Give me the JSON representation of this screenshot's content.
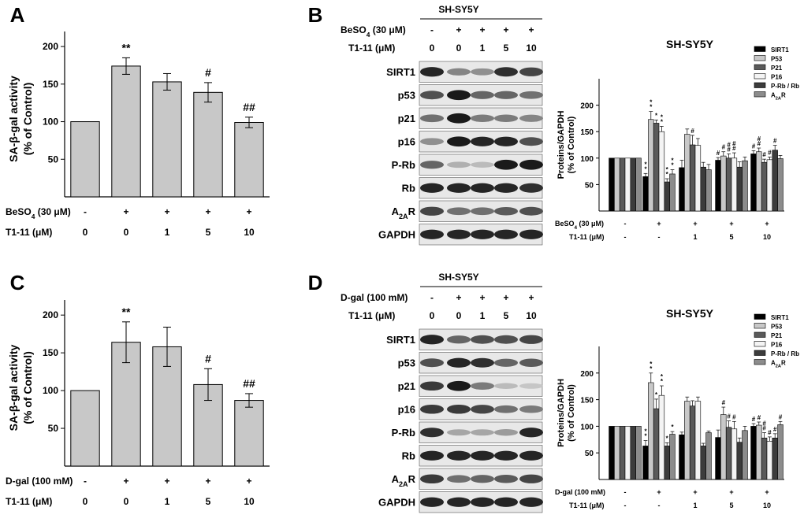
{
  "panels": {
    "A": {
      "letter": "A"
    },
    "B": {
      "letter": "B"
    },
    "C": {
      "letter": "C"
    },
    "D": {
      "letter": "D"
    }
  },
  "chart_data": [
    {
      "id": "A",
      "type": "bar",
      "ylabel_1": "SA-β-gal activity",
      "ylabel_2": "(% of Control)",
      "yticks": [
        50,
        100,
        150,
        200
      ],
      "ylim": [
        0,
        220
      ],
      "categories": [
        "0",
        "0",
        "1",
        "5",
        "10"
      ],
      "treatment_label": "BeSO4 (30 μM)",
      "treatment_values": [
        "-",
        "+",
        "+",
        "+",
        "+"
      ],
      "dose_label": "T1-11 (μM)",
      "values": [
        100,
        174,
        153,
        139,
        99
      ],
      "errors": [
        0,
        11,
        11,
        13,
        7
      ],
      "annotations": [
        "",
        "**",
        "",
        "#",
        "##"
      ]
    },
    {
      "id": "C",
      "type": "bar",
      "ylabel_1": "SA-β-gal activity",
      "ylabel_2": "(% of Control)",
      "yticks": [
        50,
        100,
        150,
        200
      ],
      "ylim": [
        0,
        220
      ],
      "categories": [
        "0",
        "0",
        "1",
        "5",
        "10"
      ],
      "treatment_label": "D-gal (100 mM)",
      "treatment_values": [
        "-",
        "+",
        "+",
        "+",
        "+"
      ],
      "dose_label": "T1-11 (μM)",
      "values": [
        100,
        164,
        158,
        108,
        87
      ],
      "errors": [
        0,
        27,
        26,
        21,
        9
      ],
      "annotations": [
        "",
        "**",
        "",
        "#",
        "##"
      ]
    },
    {
      "id": "B",
      "type": "bar",
      "title": "SH-SY5Y",
      "ylabel_1": "Proteins/GAPDH",
      "ylabel_2": "(% of Control)",
      "yticks": [
        50,
        100,
        150,
        200
      ],
      "ylim": [
        0,
        250
      ],
      "legend": [
        "SIRT1",
        "P53",
        "P21",
        "P16",
        "P-Rb / Rb",
        "A2AR"
      ],
      "series_colors": [
        "#000000",
        "#c8c8c8",
        "#5a5a5a",
        "#f4f4f4",
        "#3c3c3c",
        "#8c8c8c"
      ],
      "treatment_label": "BeSO4 (30 μM)",
      "treatment_values": [
        "-",
        "+",
        "+",
        "+",
        "+"
      ],
      "dose_label": "T1-11 (μM)",
      "dose_values": [
        "-",
        "-",
        "1",
        "5",
        "10"
      ],
      "groups": [
        {
          "values": [
            100,
            100,
            100,
            100,
            100,
            100
          ],
          "errors": [
            0,
            0,
            0,
            0,
            0,
            0
          ],
          "marks": [
            "",
            "",
            "",
            "",
            "",
            ""
          ]
        },
        {
          "values": [
            65,
            173,
            166,
            150,
            55,
            70
          ],
          "errors": [
            6,
            15,
            6,
            10,
            6,
            8
          ],
          "marks": [
            "**",
            "**",
            "*",
            "**",
            "**",
            "**"
          ]
        },
        {
          "values": [
            82,
            145,
            125,
            124,
            83,
            78
          ],
          "errors": [
            14,
            10,
            18,
            13,
            9,
            10
          ],
          "marks": [
            "",
            "",
            "#",
            "",
            "",
            ""
          ]
        },
        {
          "values": [
            96,
            104,
            100,
            100,
            83,
            95
          ],
          "errors": [
            5,
            8,
            8,
            10,
            10,
            7
          ],
          "marks": [
            "#",
            "#",
            "##",
            "##",
            "",
            ""
          ]
        },
        {
          "values": [
            108,
            112,
            92,
            97,
            115,
            99
          ],
          "errors": [
            6,
            7,
            6,
            5,
            9,
            6
          ],
          "marks": [
            "#",
            "##",
            "#",
            "#",
            "#",
            ""
          ]
        }
      ],
      "blot": {
        "cell_line": "SH-SY5Y",
        "treatment_label": "BeSO",
        "treatment_sub": "4",
        "treatment_unit": " (30 μM)",
        "treatment_values": [
          "-",
          "+",
          "+",
          "+",
          "+"
        ],
        "dose_label": "T1-11 (μM)",
        "dose_values": [
          "0",
          "0",
          "1",
          "5",
          "10"
        ],
        "bands": [
          "SIRT1",
          "p53",
          "p21",
          "p16",
          "P-Rb",
          "Rb",
          "A2AR",
          "GAPDH"
        ],
        "intensity": [
          [
            0.9,
            0.45,
            0.4,
            0.85,
            0.75
          ],
          [
            0.7,
            0.95,
            0.6,
            0.6,
            0.55
          ],
          [
            0.55,
            0.95,
            0.5,
            0.5,
            0.45
          ],
          [
            0.4,
            0.95,
            0.9,
            0.9,
            0.7
          ],
          [
            0.6,
            0.25,
            0.2,
            0.95,
            0.95
          ],
          [
            0.9,
            0.9,
            0.9,
            0.9,
            0.85
          ],
          [
            0.75,
            0.55,
            0.55,
            0.65,
            0.7
          ],
          [
            0.9,
            0.9,
            0.9,
            0.9,
            0.9
          ]
        ]
      }
    },
    {
      "id": "D",
      "type": "bar",
      "title": "SH-SY5Y",
      "ylabel_1": "Proteins/GAPDH",
      "ylabel_2": "(% of Control)",
      "yticks": [
        50,
        100,
        150,
        200
      ],
      "ylim": [
        0,
        250
      ],
      "legend": [
        "SIRT1",
        "P53",
        "P21",
        "P16",
        "P-Rb / Rb",
        "A2AR"
      ],
      "series_colors": [
        "#000000",
        "#c8c8c8",
        "#5a5a5a",
        "#f4f4f4",
        "#3c3c3c",
        "#8c8c8c"
      ],
      "treatment_label": "D-gal (100 mM)",
      "treatment_values": [
        "-",
        "+",
        "+",
        "+",
        "+"
      ],
      "dose_label": "T1-11 (μM)",
      "dose_values": [
        "-",
        "-",
        "1",
        "5",
        "10"
      ],
      "groups": [
        {
          "values": [
            100,
            100,
            100,
            100,
            100,
            100
          ],
          "errors": [
            0,
            0,
            0,
            0,
            0,
            0
          ],
          "marks": [
            "",
            "",
            "",
            "",
            "",
            ""
          ]
        },
        {
          "values": [
            63,
            182,
            133,
            158,
            63,
            85
          ],
          "errors": [
            10,
            18,
            18,
            18,
            6,
            5
          ],
          "marks": [
            "**",
            "**",
            "*",
            "**",
            "*",
            "*"
          ]
        },
        {
          "values": [
            84,
            147,
            138,
            147,
            63,
            88
          ],
          "errors": [
            5,
            8,
            10,
            8,
            5,
            3
          ],
          "marks": [
            "",
            "",
            "",
            "",
            "",
            ""
          ]
        },
        {
          "values": [
            79,
            122,
            98,
            95,
            70,
            92
          ],
          "errors": [
            14,
            14,
            12,
            14,
            8,
            8
          ],
          "marks": [
            "",
            "#",
            "#",
            "#",
            "",
            ""
          ]
        },
        {
          "values": [
            100,
            102,
            78,
            72,
            78,
            103
          ],
          "errors": [
            5,
            6,
            10,
            8,
            8,
            6
          ],
          "marks": [
            "#",
            "#",
            "##",
            "#",
            "#",
            "#"
          ]
        }
      ],
      "blot": {
        "cell_line": "SH-SY5Y",
        "treatment_label": "D-gal (100 mM)",
        "treatment_sub": "",
        "treatment_unit": "",
        "treatment_values": [
          "-",
          "+",
          "+",
          "+",
          "+"
        ],
        "dose_label": "T1-11 (μM)",
        "dose_values": [
          "0",
          "0",
          "1",
          "5",
          "10"
        ],
        "bands": [
          "SIRT1",
          "p53",
          "p21",
          "p16",
          "P-Rb",
          "Rb",
          "A2AR",
          "GAPDH"
        ],
        "intensity": [
          [
            0.9,
            0.6,
            0.7,
            0.7,
            0.75
          ],
          [
            0.7,
            0.9,
            0.85,
            0.6,
            0.65
          ],
          [
            0.8,
            0.95,
            0.5,
            0.2,
            0.15
          ],
          [
            0.8,
            0.8,
            0.75,
            0.55,
            0.5
          ],
          [
            0.85,
            0.3,
            0.3,
            0.35,
            0.9
          ],
          [
            0.9,
            0.9,
            0.9,
            0.9,
            0.9
          ],
          [
            0.8,
            0.55,
            0.6,
            0.65,
            0.75
          ],
          [
            0.9,
            0.9,
            0.9,
            0.9,
            0.9
          ]
        ]
      }
    }
  ]
}
